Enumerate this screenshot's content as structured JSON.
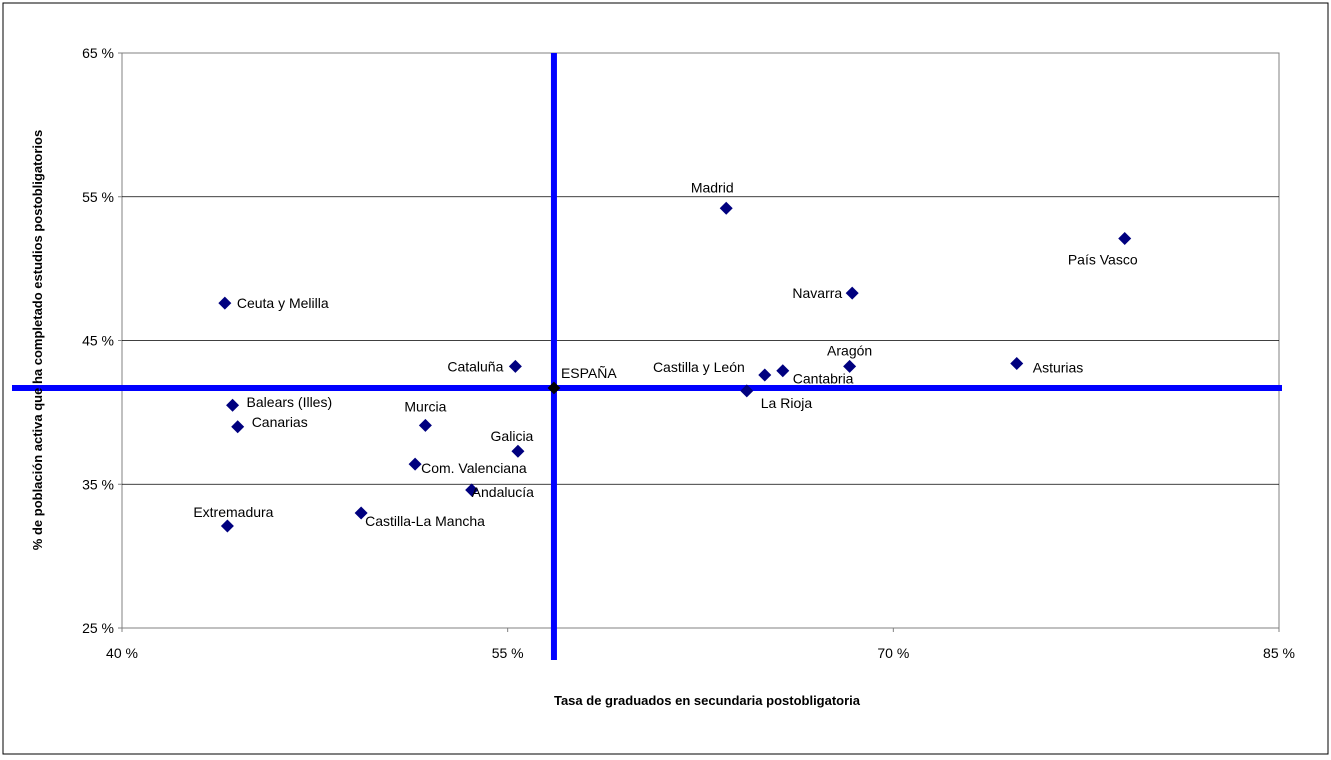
{
  "chart_data": {
    "type": "scatter",
    "title": "",
    "xlabel": "Tasa de graduados en secundaria postobligatoria",
    "ylabel": "% de población activa que ha completado estudios postobligatorios",
    "xlim": [
      40,
      85
    ],
    "ylim": [
      25,
      65
    ],
    "xticks": [
      40,
      55,
      70,
      85
    ],
    "yticks": [
      25,
      35,
      45,
      55,
      65
    ],
    "xtick_labels": [
      "40 %",
      "55 %",
      "70 %",
      "85 %"
    ],
    "ytick_labels": [
      "25 %",
      "35 %",
      "45 %",
      "55 %",
      "65 %"
    ],
    "grid": {
      "horizontal": true,
      "vertical": false
    },
    "reference_lines": {
      "x": 56.8,
      "y": 41.7,
      "color": "#0000ff"
    },
    "marker_color": "#00007f",
    "points": [
      {
        "label": "Madrid",
        "x": 63.5,
        "y": 54.2
      },
      {
        "label": "País Vasco",
        "x": 79.0,
        "y": 52.1
      },
      {
        "label": "Navarra",
        "x": 68.4,
        "y": 48.3
      },
      {
        "label": "Ceuta y Melilla",
        "x": 44.0,
        "y": 47.6
      },
      {
        "label": "Cataluña",
        "x": 55.3,
        "y": 43.2
      },
      {
        "label": "Aragón",
        "x": 68.3,
        "y": 43.2
      },
      {
        "label": "Asturias",
        "x": 74.8,
        "y": 43.4
      },
      {
        "label": "Castilla y León",
        "x": 65.0,
        "y": 42.6
      },
      {
        "label": "Cantabria",
        "x": 65.7,
        "y": 42.9
      },
      {
        "label": "ESPAÑA",
        "x": 56.8,
        "y": 41.7
      },
      {
        "label": "La Rioja",
        "x": 64.3,
        "y": 41.5
      },
      {
        "label": "Balears (Illes)",
        "x": 44.3,
        "y": 40.5
      },
      {
        "label": "Canarias",
        "x": 44.5,
        "y": 39.0
      },
      {
        "label": "Murcia",
        "x": 51.8,
        "y": 39.1
      },
      {
        "label": "Galicia",
        "x": 55.4,
        "y": 37.3
      },
      {
        "label": "Com. Valenciana",
        "x": 51.4,
        "y": 36.4
      },
      {
        "label": "Andalucía",
        "x": 53.6,
        "y": 34.6
      },
      {
        "label": "Castilla-La Mancha",
        "x": 49.3,
        "y": 33.0
      },
      {
        "label": "Extremadura",
        "x": 44.1,
        "y": 32.1
      }
    ]
  }
}
